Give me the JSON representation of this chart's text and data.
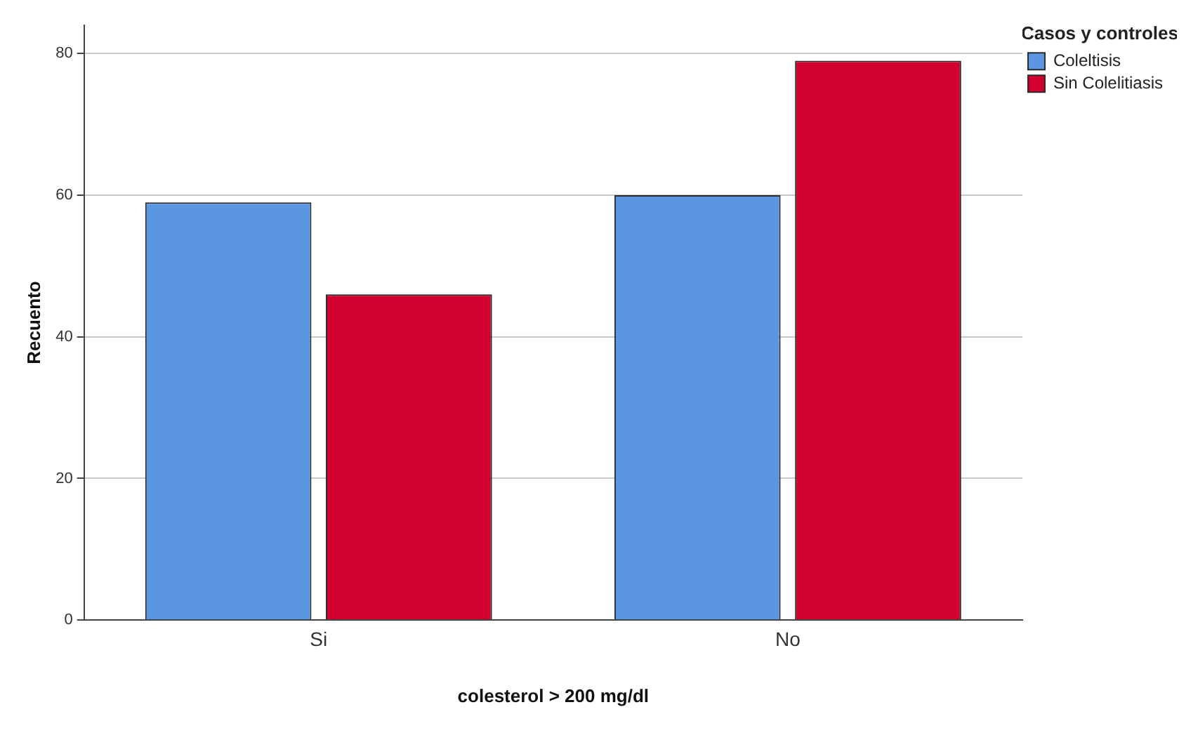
{
  "chart_data": {
    "type": "bar",
    "xlabel": "colesterol > 200 mg/dl",
    "ylabel": "Recuento",
    "legend_title": "Casos y controles",
    "categories": [
      "Si",
      "No"
    ],
    "series": [
      {
        "name": "Coleltisis",
        "color": "#5a97e0",
        "values": [
          59,
          60
        ]
      },
      {
        "name": "Sin Colelitiasis",
        "color": "#d2002e",
        "values": [
          46,
          79
        ]
      }
    ],
    "ylim": [
      0,
      84
    ],
    "yticks": [
      0,
      20,
      40,
      60,
      80
    ],
    "grid": "y",
    "legend": "top right"
  }
}
